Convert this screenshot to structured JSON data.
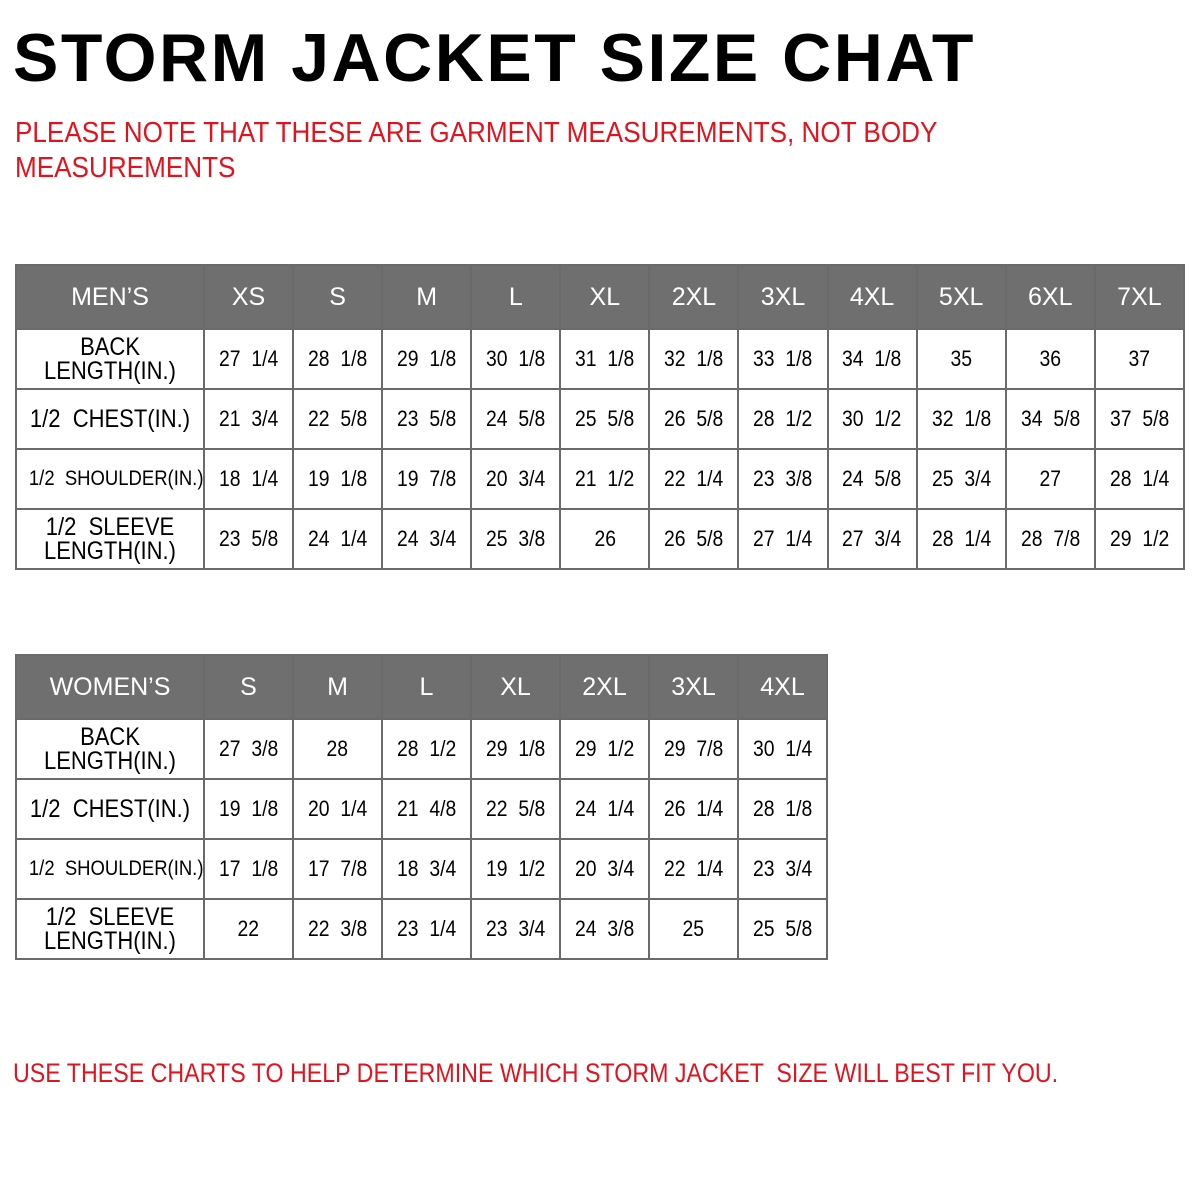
{
  "title": "STORM JACKET SIZE CHAT",
  "note": [
    "PLEASE NOTE THAT THESE ARE GARMENT MEASUREMENTS, NOT BODY",
    "MEASUREMENTS"
  ],
  "colors": {
    "header_bg": "#6f6f6f",
    "accent_red": "#e0141e"
  },
  "mens": {
    "header": "MEN’S",
    "sizes": [
      "XS",
      "S",
      "M",
      "L",
      "XL",
      "2XL",
      "3XL",
      "4XL",
      "5XL",
      "6XL",
      "7XL"
    ],
    "rows": [
      {
        "label": [
          "BACK",
          "LENGTH(IN.)"
        ],
        "values": [
          "27  1/4",
          "28  1/8",
          "29  1/8",
          "30  1/8",
          "31  1/8",
          "32  1/8",
          "33  1/8",
          "34  1/8",
          "35",
          "36",
          "37"
        ]
      },
      {
        "label": [
          "1/2  CHEST(IN.)"
        ],
        "values": [
          "21  3/4",
          "22  5/8",
          "23  5/8",
          "24  5/8",
          "25  5/8",
          "26  5/8",
          "28  1/2",
          "30  1/2",
          "32  1/8",
          "34  5/8",
          "37  5/8"
        ]
      },
      {
        "label": [
          "1/2  SHOULDER(IN.)"
        ],
        "values": [
          "18  1/4",
          "19  1/8",
          "19  7/8",
          "20  3/4",
          "21  1/2",
          "22  1/4",
          "23  3/8",
          "24  5/8",
          "25  3/4",
          "27",
          "28  1/4"
        ]
      },
      {
        "label": [
          "1/2  SLEEVE",
          "LENGTH(IN.)"
        ],
        "values": [
          "23  5/8",
          "24  1/4",
          "24  3/4",
          "25  3/8",
          "26",
          "26  5/8",
          "27  1/4",
          "27  3/4",
          "28  1/4",
          "28  7/8",
          "29  1/2"
        ]
      }
    ]
  },
  "womens": {
    "header": "WOMEN’S",
    "sizes": [
      "S",
      "M",
      "L",
      "XL",
      "2XL",
      "3XL",
      "4XL"
    ],
    "rows": [
      {
        "label": [
          "BACK",
          "LENGTH(IN.)"
        ],
        "values": [
          "27  3/8",
          "28",
          "28  1/2",
          "29  1/8",
          "29  1/2",
          "29  7/8",
          "30  1/4"
        ]
      },
      {
        "label": [
          "1/2  CHEST(IN.)"
        ],
        "values": [
          "19  1/8",
          "20  1/4",
          "21  4/8",
          "22  5/8",
          "24  1/4",
          "26  1/4",
          "28  1/8"
        ]
      },
      {
        "label": [
          "1/2  SHOULDER(IN.)"
        ],
        "values": [
          "17  1/8",
          "17  7/8",
          "18  3/4",
          "19  1/2",
          "20  3/4",
          "22  1/4",
          "23  3/4"
        ]
      },
      {
        "label": [
          "1/2  SLEEVE",
          "LENGTH(IN.)"
        ],
        "values": [
          "22",
          "22  3/8",
          "23  1/4",
          "23  3/4",
          "24  3/8",
          "25",
          "25  5/8"
        ]
      }
    ]
  },
  "footer": {
    "before": "USE THESE CHARTS TO HELP DETERMINE WHICH ",
    "highlight": "STORM JACKET",
    "after": "  SIZE WILL BEST FIT YOU."
  }
}
